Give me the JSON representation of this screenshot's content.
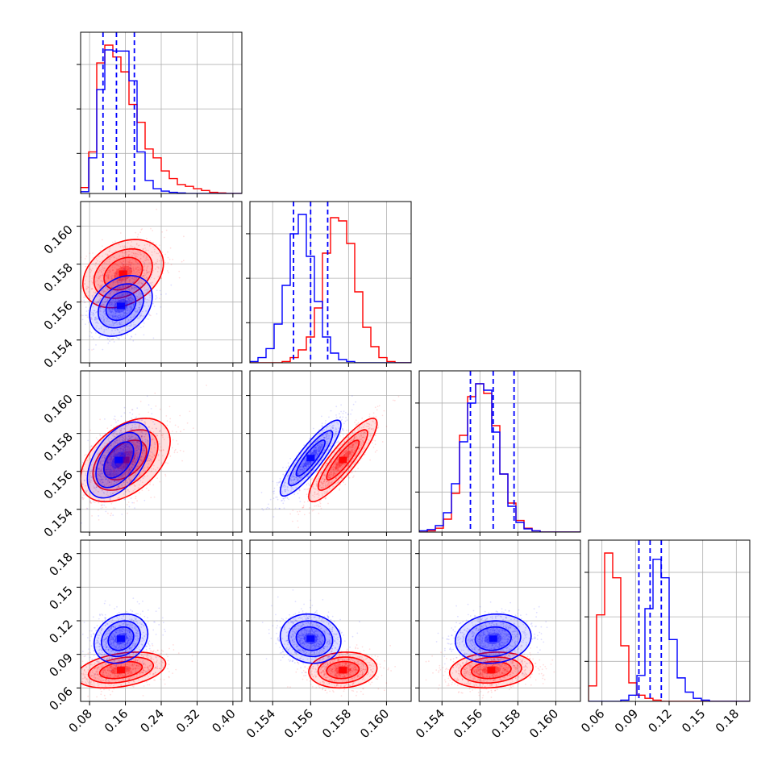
{
  "chart_data": {
    "type": "corner",
    "n_params": 4,
    "colors": {
      "blue": "#0000ff",
      "red": "#ff0000"
    },
    "grid": true,
    "params": [
      {
        "range": [
          0.06,
          0.42
        ],
        "ticks": [
          0.08,
          0.16,
          0.24,
          0.32,
          0.4
        ],
        "tick_labels": [
          "0.08",
          "0.16",
          "0.24",
          "0.32",
          "0.40"
        ]
      },
      {
        "range": [
          0.1528,
          0.1613
        ],
        "ticks": [
          0.154,
          0.156,
          0.158,
          0.16
        ],
        "tick_labels": [
          "0.154",
          "0.156",
          "0.158",
          "0.160"
        ]
      },
      {
        "range": [
          0.1528,
          0.1613
        ],
        "ticks": [
          0.154,
          0.156,
          0.158,
          0.16
        ],
        "tick_labels": [
          "0.154",
          "0.156",
          "0.158",
          "0.160"
        ]
      },
      {
        "range": [
          0.048,
          0.192
        ],
        "ticks": [
          0.06,
          0.09,
          0.12,
          0.15,
          0.18
        ],
        "tick_labels": [
          "0.06",
          "0.09",
          "0.12",
          "0.15",
          "0.18"
        ]
      }
    ],
    "series": [
      {
        "color": "#0000ff",
        "quantiles": [
          [
            0.11,
            0.14,
            0.18
          ],
          [
            0.1551,
            0.156,
            0.1569
          ],
          [
            0.1555,
            0.1567,
            0.1578
          ],
          [
            0.093,
            0.103,
            0.113
          ]
        ],
        "hist": [
          {
            "edges_range": [
              0.06,
              0.42
            ],
            "counts": [
              3,
              60,
              175,
              242,
              240,
              240,
              190,
              70,
              22,
              8,
              4,
              2,
              1,
              0,
              0,
              0,
              0,
              0,
              0,
              0
            ]
          },
          {
            "edges_range": [
              0.1528,
              0.1613
            ],
            "counts": [
              2,
              8,
              22,
              60,
              120,
              200,
              230,
              165,
              95,
              40,
              15,
              5,
              2,
              0,
              0,
              0,
              0,
              0,
              0,
              0
            ]
          },
          {
            "edges_range": [
              0.1528,
              0.1613
            ],
            "counts": [
              2,
              4,
              10,
              30,
              75,
              140,
              200,
              230,
              220,
              155,
              90,
              40,
              15,
              5,
              2,
              0,
              0,
              0,
              0,
              0
            ]
          },
          {
            "edges_range": [
              0.048,
              0.192
            ],
            "counts": [
              0,
              0,
              0,
              0,
              2,
              10,
              42,
              150,
              230,
              200,
              100,
              38,
              15,
              5,
              2,
              0,
              0,
              0,
              0,
              0
            ]
          }
        ]
      },
      {
        "color": "#ff0000",
        "quantiles": [
          null,
          null,
          null,
          null
        ],
        "hist": [
          {
            "edges_range": [
              0.06,
              0.42
            ],
            "counts": [
              10,
              70,
              220,
              250,
              230,
              205,
              150,
              120,
              75,
              60,
              38,
              25,
              15,
              12,
              8,
              5,
              2,
              1,
              0,
              0
            ]
          },
          {
            "edges_range": [
              0.1528,
              0.1613
            ],
            "counts": [
              0,
              0,
              0,
              0,
              2,
              8,
              20,
              40,
              85,
              170,
              225,
              220,
              185,
              110,
              55,
              25,
              8,
              2,
              0,
              0
            ]
          },
          {
            "edges_range": [
              0.1528,
              0.1613
            ],
            "counts": [
              0,
              2,
              6,
              20,
              60,
              150,
              210,
              230,
              215,
              165,
              90,
              45,
              18,
              6,
              2,
              0,
              0,
              0,
              0,
              0
            ]
          },
          {
            "edges_range": [
              0.048,
              0.192
            ],
            "counts": [
              25,
              140,
              240,
              200,
              90,
              30,
              10,
              5,
              2,
              0,
              0,
              0,
              0,
              0,
              0,
              0,
              0,
              0,
              0,
              0
            ]
          }
        ]
      }
    ],
    "pairs": [
      {
        "row": 1,
        "col": 0,
        "blue": {
          "mean": [
            0.15,
            0.1558
          ],
          "sd": [
            0.035,
            0.0008
          ],
          "rho": 0.3
        },
        "red": {
          "mean": [
            0.155,
            0.1575
          ],
          "sd": [
            0.045,
            0.0009
          ],
          "rho": 0.3
        }
      },
      {
        "row": 2,
        "col": 0,
        "blue": {
          "mean": [
            0.145,
            0.1566
          ],
          "sd": [
            0.035,
            0.001
          ],
          "rho": 0.5
        },
        "red": {
          "mean": [
            0.16,
            0.1566
          ],
          "sd": [
            0.05,
            0.0011
          ],
          "rho": 0.45
        }
      },
      {
        "row": 2,
        "col": 1,
        "blue": {
          "mean": [
            0.156,
            0.1567
          ],
          "sd": [
            0.0008,
            0.001
          ],
          "rho": 0.88
        },
        "red": {
          "mean": [
            0.1577,
            0.1566
          ],
          "sd": [
            0.0009,
            0.0011
          ],
          "rho": 0.88
        }
      },
      {
        "row": 3,
        "col": 0,
        "blue": {
          "mean": [
            0.15,
            0.104
          ],
          "sd": [
            0.03,
            0.011
          ],
          "rho": 0.2
        },
        "red": {
          "mean": [
            0.15,
            0.076
          ],
          "sd": [
            0.05,
            0.008
          ],
          "rho": 0.35
        }
      },
      {
        "row": 3,
        "col": 1,
        "blue": {
          "mean": [
            0.156,
            0.104
          ],
          "sd": [
            0.0008,
            0.011
          ],
          "rho": -0.1
        },
        "red": {
          "mean": [
            0.1577,
            0.076
          ],
          "sd": [
            0.0009,
            0.008
          ],
          "rho": 0.1
        }
      },
      {
        "row": 3,
        "col": 2,
        "blue": {
          "mean": [
            0.1567,
            0.104
          ],
          "sd": [
            0.001,
            0.011
          ],
          "rho": 0.1
        },
        "red": {
          "mean": [
            0.1566,
            0.076
          ],
          "sd": [
            0.0011,
            0.008
          ],
          "rho": 0.15
        }
      }
    ]
  }
}
